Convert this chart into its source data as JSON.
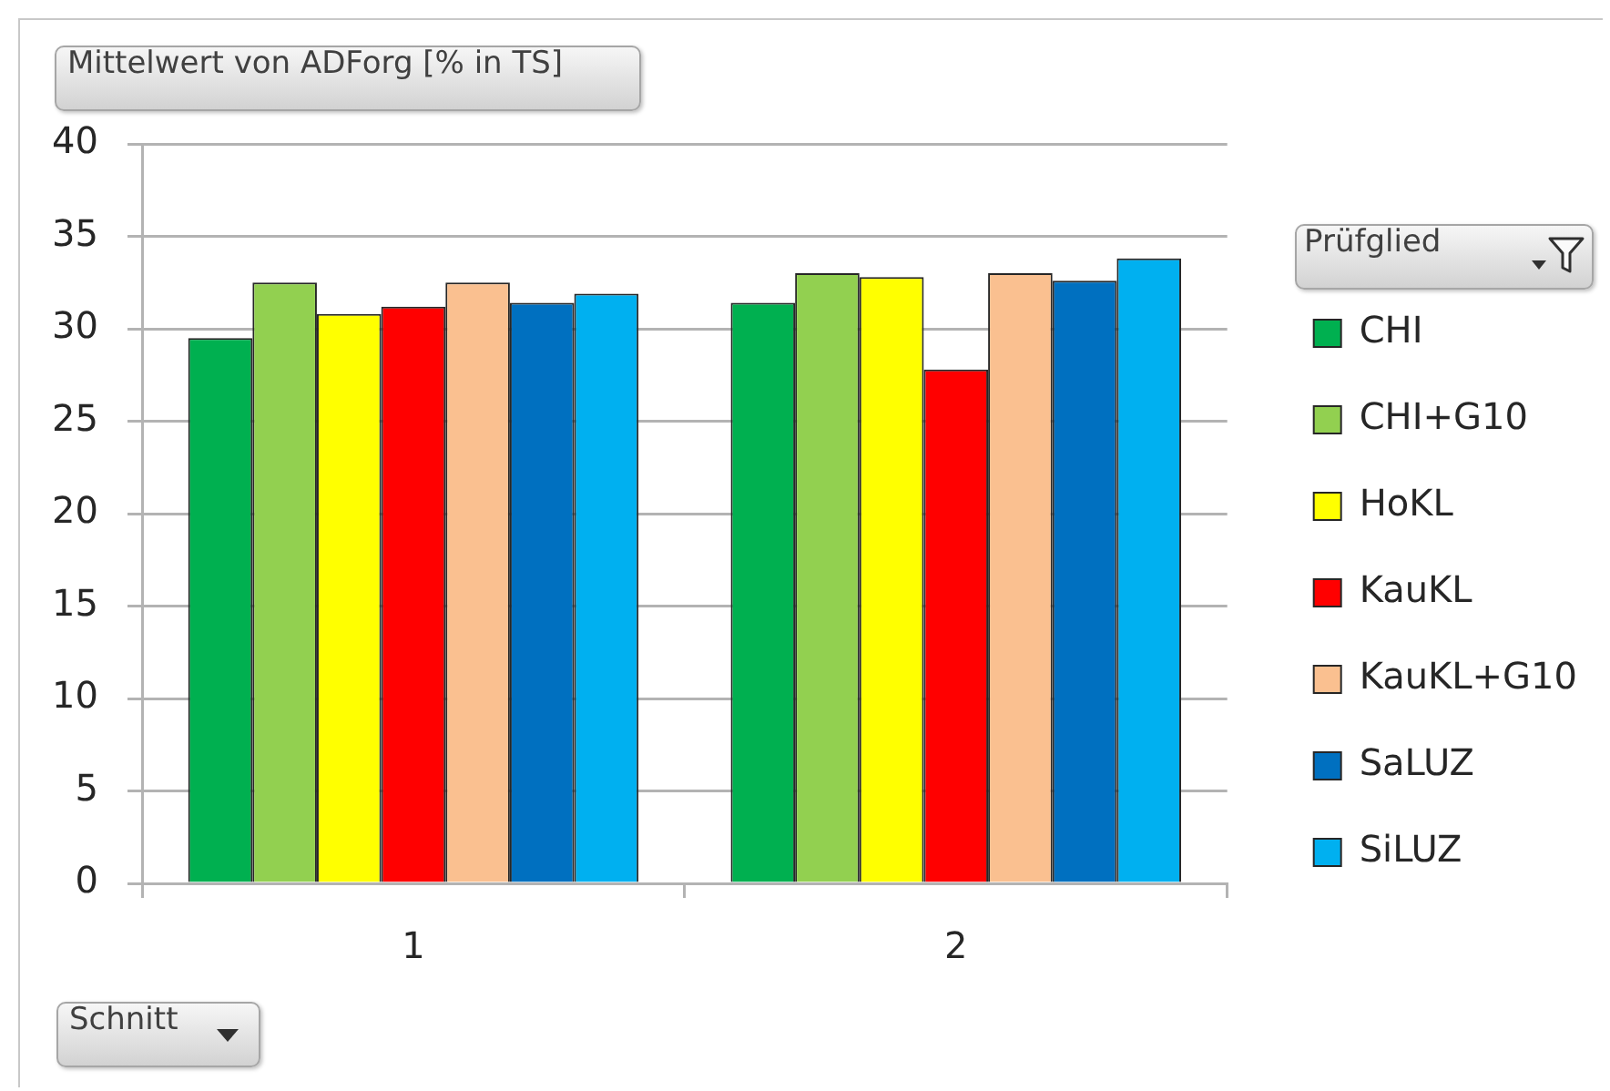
{
  "chart_data": {
    "type": "bar",
    "title": "Mittelwert von ADForg [% in TS]",
    "xlabel": "Schnitt",
    "legend_title": "Prüfglied",
    "categories": [
      "1",
      "2"
    ],
    "series": [
      {
        "name": "CHI",
        "color": "#00b050",
        "values": [
          29.5,
          31.4
        ]
      },
      {
        "name": "CHI+G10",
        "color": "#92d050",
        "values": [
          32.5,
          33.0
        ]
      },
      {
        "name": "HoKL",
        "color": "#ffff00",
        "values": [
          30.8,
          32.8
        ]
      },
      {
        "name": "KauKL",
        "color": "#ff0000",
        "values": [
          31.2,
          27.8
        ]
      },
      {
        "name": "KauKL+G10",
        "color": "#fac090",
        "values": [
          32.5,
          33.0
        ]
      },
      {
        "name": "SaLUZ",
        "color": "#0070c0",
        "values": [
          31.4,
          32.6
        ]
      },
      {
        "name": "SiLUZ",
        "color": "#00b0f0",
        "values": [
          31.9,
          33.8
        ]
      }
    ],
    "ylim": [
      0,
      40
    ],
    "yticks": [
      0,
      5,
      10,
      15,
      20,
      25,
      30,
      35,
      40
    ],
    "grid": "y",
    "legend": "right"
  }
}
